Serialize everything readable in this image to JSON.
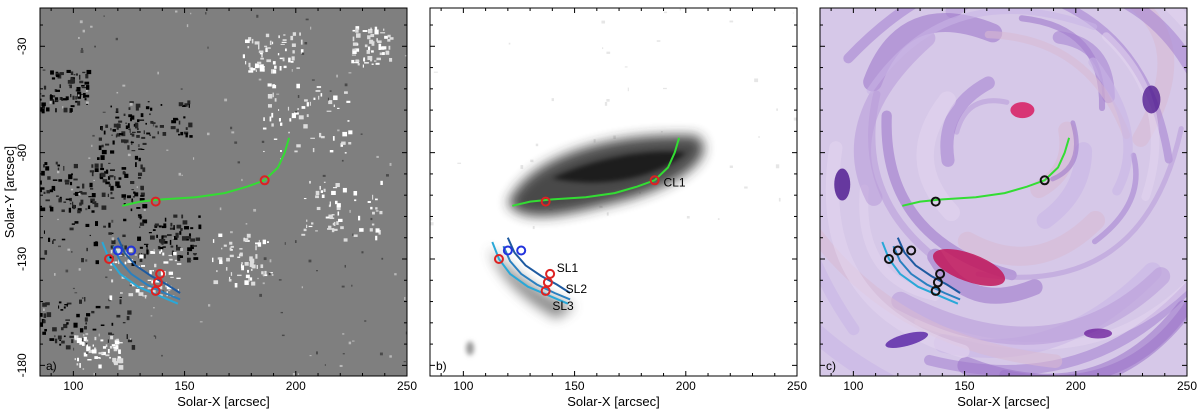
{
  "chart_data": [
    {
      "type": "scatter",
      "panel_label": "a)",
      "xlabel": "Solar-X [arcsec]",
      "ylabel": "Solar-Y [arcsec]",
      "xlim": [
        85,
        250
      ],
      "ylim": [
        -185,
        -12
      ],
      "x_ticks": [
        100,
        150,
        200,
        250
      ],
      "y_ticks": [
        -30,
        -80,
        -130,
        -180
      ],
      "background": "magnetogram",
      "series": [
        {
          "name": "",
          "kind": "line",
          "color": "#33dd33",
          "points": [
            [
              122,
              -105
            ],
            [
              130,
              -103
            ],
            [
              140,
              -102
            ],
            [
              155,
              -101
            ],
            [
              168,
              -99
            ],
            [
              178,
              -96
            ],
            [
              186,
              -93
            ],
            [
              192,
              -87
            ],
            [
              195,
              -80
            ],
            [
              197,
              -73
            ]
          ]
        },
        {
          "name": "",
          "kind": "line",
          "color": "#1e5aa0",
          "points": [
            [
              120,
              -120
            ],
            [
              123,
              -127
            ],
            [
              128,
              -133
            ],
            [
              135,
              -138
            ],
            [
              142,
              -142
            ],
            [
              148,
              -146
            ]
          ]
        },
        {
          "name": "",
          "kind": "line",
          "color": "#2a80c0",
          "points": [
            [
              118,
              -124
            ],
            [
              121,
              -131
            ],
            [
              126,
              -137
            ],
            [
              133,
              -142
            ],
            [
              141,
              -146
            ],
            [
              148,
              -149
            ]
          ]
        },
        {
          "name": "",
          "kind": "line",
          "color": "#29a8d8",
          "points": [
            [
              113,
              -122
            ],
            [
              116,
              -130
            ],
            [
              121,
              -137
            ],
            [
              129,
              -143
            ],
            [
              138,
              -147
            ],
            [
              147,
              -151
            ]
          ]
        },
        {
          "name": "",
          "kind": "markers",
          "color": "#dd2222",
          "points": [
            [
              137,
              -103
            ],
            [
              186,
              -93
            ],
            [
              116,
              -130
            ],
            [
              139,
              -137
            ],
            [
              138,
              -141
            ],
            [
              137,
              -145
            ]
          ]
        },
        {
          "name": "",
          "kind": "markers",
          "color": "#2233dd",
          "points": [
            [
              120,
              -126
            ],
            [
              126,
              -126
            ]
          ]
        }
      ],
      "annotations": []
    },
    {
      "type": "scatter",
      "panel_label": "b)",
      "xlabel": "Solar-X [arcsec]",
      "ylabel": "",
      "xlim": [
        85,
        250
      ],
      "ylim": [
        -185,
        -12
      ],
      "x_ticks": [
        100,
        150,
        200,
        250
      ],
      "y_ticks": [
        -30,
        -80,
        -130,
        -180
      ],
      "background": "grayscale emission",
      "series": [
        {
          "name": "CL1",
          "kind": "line",
          "color": "#33dd33",
          "points": [
            [
              122,
              -105
            ],
            [
              130,
              -103
            ],
            [
              140,
              -102
            ],
            [
              155,
              -101
            ],
            [
              168,
              -99
            ],
            [
              178,
              -96
            ],
            [
              186,
              -93
            ],
            [
              192,
              -87
            ],
            [
              195,
              -80
            ],
            [
              197,
              -73
            ]
          ]
        },
        {
          "name": "SL1",
          "kind": "line",
          "color": "#1e5aa0",
          "points": [
            [
              120,
              -120
            ],
            [
              123,
              -127
            ],
            [
              128,
              -133
            ],
            [
              135,
              -138
            ],
            [
              142,
              -142
            ],
            [
              148,
              -146
            ]
          ]
        },
        {
          "name": "SL2",
          "kind": "line",
          "color": "#2a80c0",
          "points": [
            [
              118,
              -124
            ],
            [
              121,
              -131
            ],
            [
              126,
              -137
            ],
            [
              133,
              -142
            ],
            [
              141,
              -146
            ],
            [
              148,
              -149
            ]
          ]
        },
        {
          "name": "SL3",
          "kind": "line",
          "color": "#29a8d8",
          "points": [
            [
              113,
              -122
            ],
            [
              116,
              -130
            ],
            [
              121,
              -137
            ],
            [
              129,
              -143
            ],
            [
              138,
              -147
            ],
            [
              147,
              -151
            ]
          ]
        },
        {
          "name": "",
          "kind": "markers",
          "color": "#dd2222",
          "points": [
            [
              137,
              -103
            ],
            [
              186,
              -93
            ],
            [
              116,
              -130
            ],
            [
              139,
              -137
            ],
            [
              138,
              -141
            ],
            [
              137,
              -145
            ]
          ]
        },
        {
          "name": "",
          "kind": "markers",
          "color": "#2233dd",
          "points": [
            [
              120,
              -126
            ],
            [
              126,
              -126
            ]
          ]
        }
      ],
      "annotations": [
        {
          "text": "CL1",
          "x": 190,
          "y": -96
        },
        {
          "text": "SL1",
          "x": 142,
          "y": -136
        },
        {
          "text": "SL2",
          "x": 146,
          "y": -146
        },
        {
          "text": "SL3",
          "x": 140,
          "y": -154
        }
      ]
    },
    {
      "type": "scatter",
      "panel_label": "c)",
      "xlabel": "Solar-X [arcsec]",
      "ylabel": "",
      "xlim": [
        85,
        250
      ],
      "ylim": [
        -185,
        -12
      ],
      "x_ticks": [
        100,
        150,
        200,
        250
      ],
      "y_ticks": [
        -30,
        -80,
        -130,
        -180
      ],
      "background": "3D field rendering",
      "series": [
        {
          "name": "",
          "kind": "line",
          "color": "#33dd33",
          "points": [
            [
              122,
              -105
            ],
            [
              130,
              -103
            ],
            [
              140,
              -102
            ],
            [
              155,
              -101
            ],
            [
              168,
              -99
            ],
            [
              178,
              -96
            ],
            [
              186,
              -93
            ],
            [
              192,
              -87
            ],
            [
              195,
              -80
            ],
            [
              197,
              -73
            ]
          ]
        },
        {
          "name": "",
          "kind": "line",
          "color": "#1e5aa0",
          "points": [
            [
              120,
              -120
            ],
            [
              123,
              -127
            ],
            [
              128,
              -133
            ],
            [
              135,
              -138
            ],
            [
              142,
              -142
            ],
            [
              148,
              -146
            ]
          ]
        },
        {
          "name": "",
          "kind": "line",
          "color": "#2a80c0",
          "points": [
            [
              118,
              -124
            ],
            [
              121,
              -131
            ],
            [
              126,
              -137
            ],
            [
              133,
              -142
            ],
            [
              141,
              -146
            ],
            [
              148,
              -149
            ]
          ]
        },
        {
          "name": "",
          "kind": "line",
          "color": "#29a8d8",
          "points": [
            [
              113,
              -122
            ],
            [
              116,
              -130
            ],
            [
              121,
              -137
            ],
            [
              129,
              -143
            ],
            [
              138,
              -147
            ],
            [
              147,
              -151
            ]
          ]
        },
        {
          "name": "",
          "kind": "markers",
          "color": "#111111",
          "points": [
            [
              137,
              -103
            ],
            [
              186,
              -93
            ],
            [
              116,
              -130
            ],
            [
              139,
              -137
            ],
            [
              138,
              -141
            ],
            [
              137,
              -145
            ],
            [
              120,
              -126
            ],
            [
              126,
              -126
            ]
          ]
        }
      ],
      "annotations": []
    }
  ]
}
